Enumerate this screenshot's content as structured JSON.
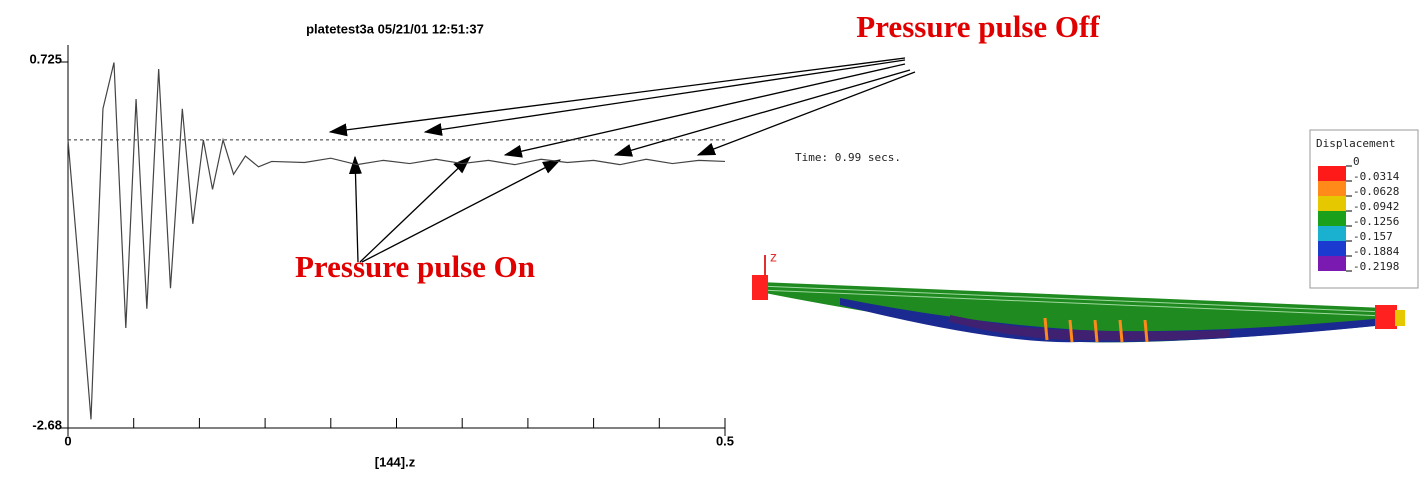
{
  "chart_data": {
    "type": "line",
    "title": "platetest3a 05/21/01 12:51:37",
    "x_label": "[144].z",
    "x": [
      0,
      0.0076,
      0.0175,
      0.0266,
      0.035,
      0.044,
      0.0518,
      0.06,
      0.069,
      0.078,
      0.087,
      0.095,
      0.103,
      0.11,
      0.118,
      0.126,
      0.135,
      0.145,
      0.155,
      0.18,
      0.2,
      0.22,
      0.24,
      0.26,
      0.28,
      0.3,
      0.32,
      0.34,
      0.36,
      0.38,
      0.4,
      0.42,
      0.44,
      0.46,
      0.48,
      0.5
    ],
    "series": [
      {
        "name": "[144].z",
        "color": "#444444",
        "values": [
          0,
          -1.1,
          -2.6,
          0.29,
          0.72,
          -1.75,
          0.38,
          -1.57,
          0.66,
          -1.38,
          0.29,
          -0.78,
          0,
          -0.46,
          0,
          -0.32,
          -0.15,
          -0.25,
          -0.2,
          -0.21,
          -0.17,
          -0.23,
          -0.19,
          -0.22,
          -0.18,
          -0.22,
          -0.19,
          -0.23,
          -0.18,
          -0.21,
          -0.19,
          -0.23,
          -0.18,
          -0.22,
          -0.19,
          -0.2
        ]
      }
    ],
    "xlim": [
      0,
      0.5
    ],
    "xticks": [
      0,
      0.5
    ],
    "xminorticks": [
      0.05,
      0.1,
      0.15,
      0.2,
      0.25,
      0.3,
      0.35,
      0.4,
      0.45
    ],
    "ylim": [
      -2.68,
      0.725
    ],
    "yticks": [
      -2.68,
      0.725
    ],
    "reference_line": 0,
    "annotations": [
      "Pressure pulse Off",
      "Pressure pulse On"
    ]
  },
  "fem_view": {
    "time": "Time: 0.99 secs.",
    "axis": "z",
    "legend": {
      "title": "Displacement",
      "labels": [
        "0",
        "-0.0314",
        "-0.0628",
        "-0.0942",
        "-0.1256",
        "-0.157",
        "-0.1884",
        "-0.2198"
      ],
      "colors": [
        "#ff1a1a",
        "#ff8a1a",
        "#e6c800",
        "#1aa01a",
        "#1ab0d0",
        "#1a3ad0",
        "#7a1ab0"
      ]
    }
  }
}
